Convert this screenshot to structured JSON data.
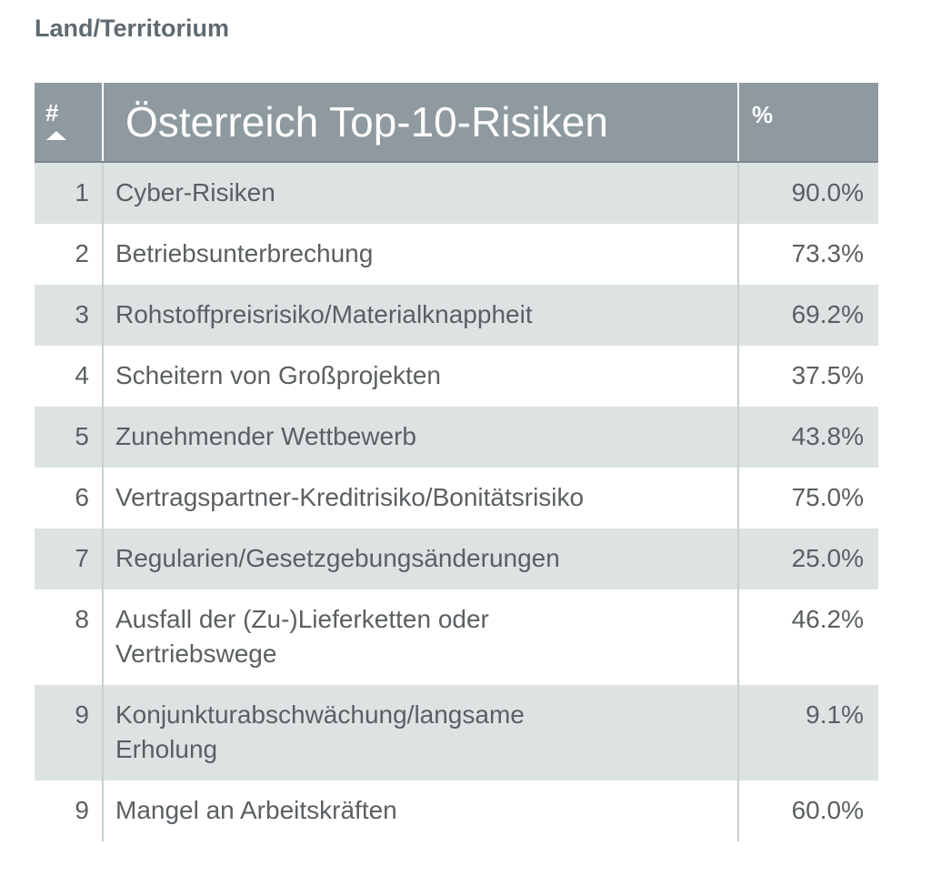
{
  "caption": "Land/Territorium",
  "table": {
    "header": [
      "#",
      "Österreich Top-10-Risiken",
      "%"
    ],
    "rows": [
      [
        "1",
        "Cyber-Risiken",
        "90.0%"
      ],
      [
        "2",
        "Betriebsunterbrechung",
        "73.3%"
      ],
      [
        "3",
        "Rohstoffpreisrisiko/Materialknappheit",
        "69.2%"
      ],
      [
        "4",
        "Scheitern von Großprojekten",
        "37.5%"
      ],
      [
        "5",
        "Zunehmender Wettbewerb",
        "43.8%"
      ],
      [
        "6",
        "Vertragspartner-Kreditrisiko/Bonitätsrisiko",
        "75.0%"
      ],
      [
        "7",
        "Regularien/Gesetzgebungsänderungen",
        "25.0%"
      ],
      [
        "8",
        "Ausfall der (Zu-)Lieferketten oder\nVertriebswege",
        "46.2%"
      ],
      [
        "9",
        "Konjunkturabschwächung/langsame\nErholung",
        "9.1%"
      ],
      [
        "9",
        "Mangel an Arbeitskräften",
        "60.0%"
      ]
    ]
  }
}
